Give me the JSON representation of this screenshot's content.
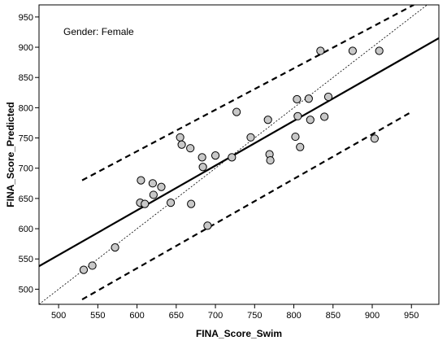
{
  "chart_data": {
    "type": "scatter",
    "title": "",
    "annotation": "Gender: Female",
    "xlabel": "FINA_Score_Swim",
    "ylabel": "FINA_Score_Predicted",
    "xlim": [
      475,
      985
    ],
    "ylim": [
      475,
      970
    ],
    "x_ticks": [
      500,
      550,
      600,
      650,
      700,
      750,
      800,
      850,
      900,
      950
    ],
    "y_ticks": [
      500,
      550,
      600,
      650,
      700,
      750,
      800,
      850,
      900,
      950
    ],
    "grid": false,
    "points": [
      {
        "x": 532,
        "y": 532
      },
      {
        "x": 543,
        "y": 539
      },
      {
        "x": 572,
        "y": 569
      },
      {
        "x": 604,
        "y": 643
      },
      {
        "x": 605,
        "y": 680
      },
      {
        "x": 610,
        "y": 641
      },
      {
        "x": 620,
        "y": 675
      },
      {
        "x": 621,
        "y": 656
      },
      {
        "x": 631,
        "y": 669
      },
      {
        "x": 643,
        "y": 643
      },
      {
        "x": 655,
        "y": 751
      },
      {
        "x": 657,
        "y": 739
      },
      {
        "x": 668,
        "y": 733
      },
      {
        "x": 669,
        "y": 641
      },
      {
        "x": 683,
        "y": 718
      },
      {
        "x": 684,
        "y": 702
      },
      {
        "x": 690,
        "y": 605
      },
      {
        "x": 700,
        "y": 721
      },
      {
        "x": 721,
        "y": 718
      },
      {
        "x": 727,
        "y": 793
      },
      {
        "x": 745,
        "y": 751
      },
      {
        "x": 767,
        "y": 780
      },
      {
        "x": 769,
        "y": 723
      },
      {
        "x": 770,
        "y": 713
      },
      {
        "x": 802,
        "y": 752
      },
      {
        "x": 804,
        "y": 814
      },
      {
        "x": 805,
        "y": 786
      },
      {
        "x": 808,
        "y": 735
      },
      {
        "x": 819,
        "y": 815
      },
      {
        "x": 821,
        "y": 780
      },
      {
        "x": 834,
        "y": 894
      },
      {
        "x": 839,
        "y": 785
      },
      {
        "x": 844,
        "y": 818
      },
      {
        "x": 875,
        "y": 894
      },
      {
        "x": 903,
        "y": 749
      },
      {
        "x": 909,
        "y": 894
      }
    ],
    "fit_line": {
      "x": [
        475,
        985
      ],
      "y": [
        538,
        915
      ]
    },
    "prediction_upper": {
      "x": [
        530,
        953
      ],
      "y": [
        680,
        970
      ]
    },
    "prediction_lower": {
      "x": [
        530,
        950
      ],
      "y": [
        483,
        793
      ]
    },
    "identity_line": {
      "x": [
        475,
        985
      ],
      "y": [
        475,
        985
      ]
    },
    "colors": {
      "marker_fill": "#c8c8c8",
      "marker_stroke": "#000000",
      "line": "#000000"
    }
  }
}
